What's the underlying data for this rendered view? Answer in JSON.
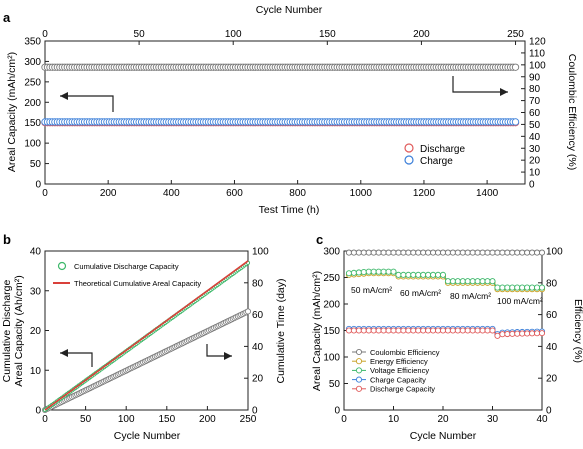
{
  "panel_labels": {
    "a": "a",
    "b": "b",
    "c": "c"
  },
  "colors": {
    "discharge": "#e05a5a",
    "charge": "#3b7fd9",
    "ce": "#777777",
    "energy": "#c9a227",
    "voltage": "#3db86a",
    "theoretical": "#d9403a"
  },
  "chart_data": [
    {
      "panel": "a",
      "type": "scatter",
      "title": "",
      "top_axis_label": "Cycle Number",
      "top_axis_ticks": [
        "0",
        "50",
        "100",
        "150",
        "200",
        "250"
      ],
      "xlabel": "Test Time (h)",
      "ylabel": "Areal Capacity (mAh/cm²)",
      "ylabel_right": "Coulombic Efficiency (%)",
      "xlim": [
        0,
        1520
      ],
      "ylim": [
        0,
        350
      ],
      "ylim_right": [
        0,
        120
      ],
      "x_ticks": [
        "0",
        "200",
        "400",
        "600",
        "800",
        "1000",
        "1200",
        "1400"
      ],
      "y_ticks": [
        "0",
        "50",
        "100",
        "150",
        "200",
        "250",
        "300",
        "350"
      ],
      "y_ticks_right": [
        "0",
        "10",
        "20",
        "30",
        "40",
        "50",
        "60",
        "70",
        "80",
        "90",
        "100",
        "110",
        "120"
      ],
      "legend": {
        "position": "lower-right",
        "entries": [
          "Discharge",
          "Charge"
        ]
      },
      "series": [
        {
          "name": "Discharge",
          "axis": "left",
          "x_range": [
            0,
            1490
          ],
          "value": 150
        },
        {
          "name": "Charge",
          "axis": "left",
          "x_range": [
            0,
            1490
          ],
          "value": 152
        },
        {
          "axis": "right",
          "x_range": [
            0,
            1490
          ],
          "value": 98
        }
      ]
    },
    {
      "panel": "b",
      "type": "line",
      "title": "",
      "xlabel": "Cycle Number",
      "ylabel": "Cumulative Discharge Areal Capacity (Ah/cm²)",
      "ylabel_lines": [
        "Cumulative Discharge",
        "Areal Capacity (Ah/cm²)"
      ],
      "ylabel_right": "Cumulative Time (day)",
      "xlim": [
        0,
        250
      ],
      "ylim": [
        0,
        40
      ],
      "ylim_right": [
        0,
        100
      ],
      "x_ticks": [
        "0",
        "50",
        "100",
        "150",
        "200",
        "250"
      ],
      "y_ticks": [
        "0",
        "10",
        "20",
        "30",
        "40"
      ],
      "y_ticks_right": [
        "0",
        "20",
        "40",
        "60",
        "80",
        "100"
      ],
      "legend": {
        "position": "top-left",
        "entries": [
          "Cumulative Discharge Capacity",
          "Theoretical Cumulative Areal Capacity"
        ]
      },
      "series": [
        {
          "name": "Cumulative Discharge Capacity",
          "axis": "left",
          "x": [
            0,
            250
          ],
          "y": [
            0,
            37
          ]
        },
        {
          "name": "Theoretical Cumulative Areal Capacity",
          "axis": "left",
          "x": [
            0,
            250
          ],
          "y": [
            0,
            37.5
          ]
        },
        {
          "axis": "right",
          "x": [
            0,
            250
          ],
          "y": [
            0,
            62
          ]
        }
      ]
    },
    {
      "panel": "c",
      "type": "line",
      "title": "",
      "xlabel": "Cycle Number",
      "ylabel": "Areal Capacity (mAh/cm²)",
      "ylabel_right": "Efficiency (%)",
      "xlim": [
        0,
        40
      ],
      "ylim": [
        0,
        300
      ],
      "ylim_right": [
        0,
        100
      ],
      "x_ticks": [
        "0",
        "10",
        "20",
        "30",
        "40"
      ],
      "y_ticks": [
        "0",
        "50",
        "100",
        "150",
        "200",
        "250",
        "300"
      ],
      "y_ticks_right": [
        "0",
        "20",
        "40",
        "60",
        "80",
        "100"
      ],
      "annotations": [
        "50 mA/cm²",
        "60 mA/cm²",
        "80 mA/cm²",
        "100 mA/cm²"
      ],
      "legend": {
        "position": "lower-left",
        "entries": [
          "Coulombic Efficiency",
          "Energy Efficiency",
          "Voltage Efficiency",
          "Charge Capacity",
          "Discharge Capacity"
        ]
      },
      "series": [
        {
          "name": "Coulombic Efficiency",
          "axis": "right",
          "x": [
            1,
            5,
            10,
            11,
            15,
            20,
            21,
            25,
            30,
            31,
            35,
            40
          ],
          "y": [
            99,
            99,
            99,
            99,
            99,
            99,
            99,
            99,
            99,
            99,
            99,
            99
          ]
        },
        {
          "name": "Energy Efficiency",
          "axis": "right",
          "x": [
            1,
            5,
            10,
            11,
            15,
            20,
            21,
            25,
            30,
            31,
            35,
            40
          ],
          "y": [
            85,
            86,
            86,
            84,
            84,
            84,
            80,
            80,
            80,
            76,
            76,
            76
          ]
        },
        {
          "name": "Voltage Efficiency",
          "axis": "right",
          "x": [
            1,
            5,
            10,
            11,
            15,
            20,
            21,
            25,
            30,
            31,
            35,
            40
          ],
          "y": [
            86,
            87,
            87,
            85,
            85,
            85,
            81,
            81,
            81,
            77,
            77,
            77
          ]
        },
        {
          "name": "Charge Capacity",
          "axis": "left",
          "x": [
            1,
            5,
            10,
            15,
            20,
            25,
            30,
            31,
            32,
            35,
            40
          ],
          "y": [
            153,
            153,
            153,
            153,
            153,
            153,
            153,
            143,
            146,
            147,
            148
          ]
        },
        {
          "name": "Discharge Capacity",
          "axis": "left",
          "x": [
            1,
            5,
            10,
            15,
            20,
            25,
            30,
            31,
            32,
            35,
            40
          ],
          "y": [
            150,
            150,
            150,
            150,
            150,
            150,
            150,
            140,
            143,
            144,
            145
          ]
        }
      ]
    }
  ]
}
